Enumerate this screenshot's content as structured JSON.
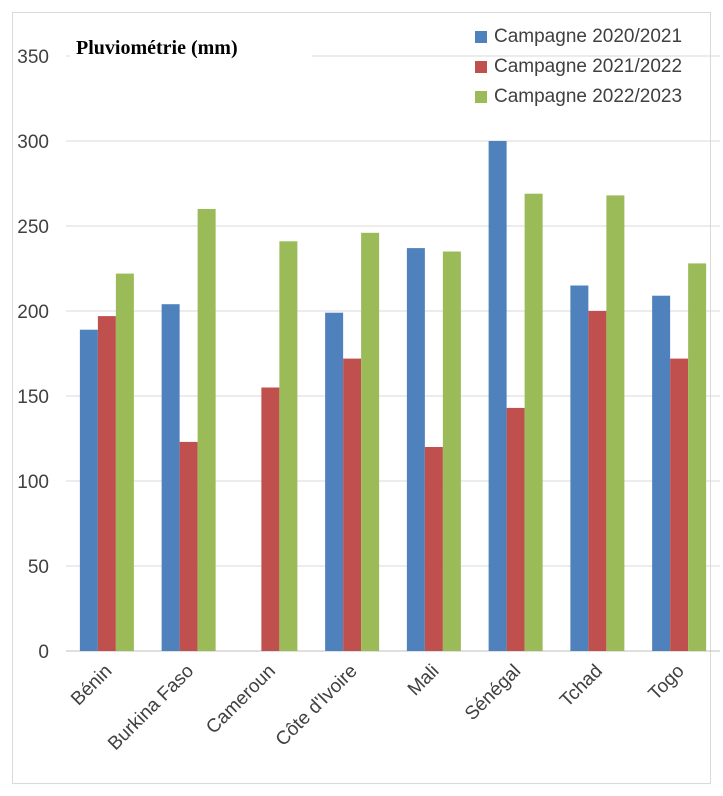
{
  "chart_data": {
    "type": "bar",
    "title": "Pluviométrie (mm)",
    "xlabel": "",
    "ylabel": "",
    "ylim": [
      0,
      350
    ],
    "yticks": [
      0,
      50,
      100,
      150,
      200,
      250,
      300,
      350
    ],
    "grid": true,
    "legend_position": "top-right",
    "categories": [
      "Bénin",
      "Burkina Faso",
      "Cameroun",
      "Côte d'Ivoire",
      "Mali",
      "Sénégal",
      "Tchad",
      "Togo"
    ],
    "series": [
      {
        "name": "Campagne 2020/2021",
        "color": "#4f81bd",
        "values": [
          189,
          204,
          null,
          199,
          237,
          300,
          215,
          209
        ]
      },
      {
        "name": "Campagne 2021/2022",
        "color": "#c0504d",
        "values": [
          197,
          123,
          155,
          172,
          120,
          143,
          200,
          172
        ]
      },
      {
        "name": "Campagne 2022/2023",
        "color": "#9bbb59",
        "values": [
          222,
          260,
          241,
          246,
          235,
          269,
          268,
          228
        ]
      }
    ]
  }
}
